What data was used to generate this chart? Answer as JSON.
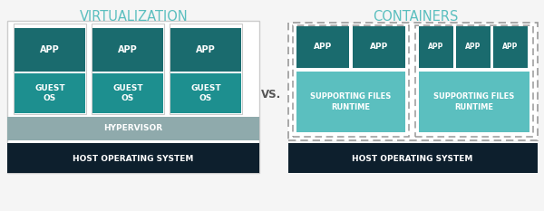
{
  "bg_color": "#f5f5f5",
  "title_virt": "VIRTUALIZATION",
  "title_cont": "CONTAINERS",
  "vs_text": "VS.",
  "color_app": "#1a6b6e",
  "color_guest_os": "#1d8f8f",
  "color_supporting": "#5bbfbf",
  "color_hypervisor": "#8faaac",
  "color_host": "#0d1f2d",
  "color_title": "#5bbfbf",
  "color_border_solid": "#cccccc",
  "color_border_dashed": "#999999"
}
